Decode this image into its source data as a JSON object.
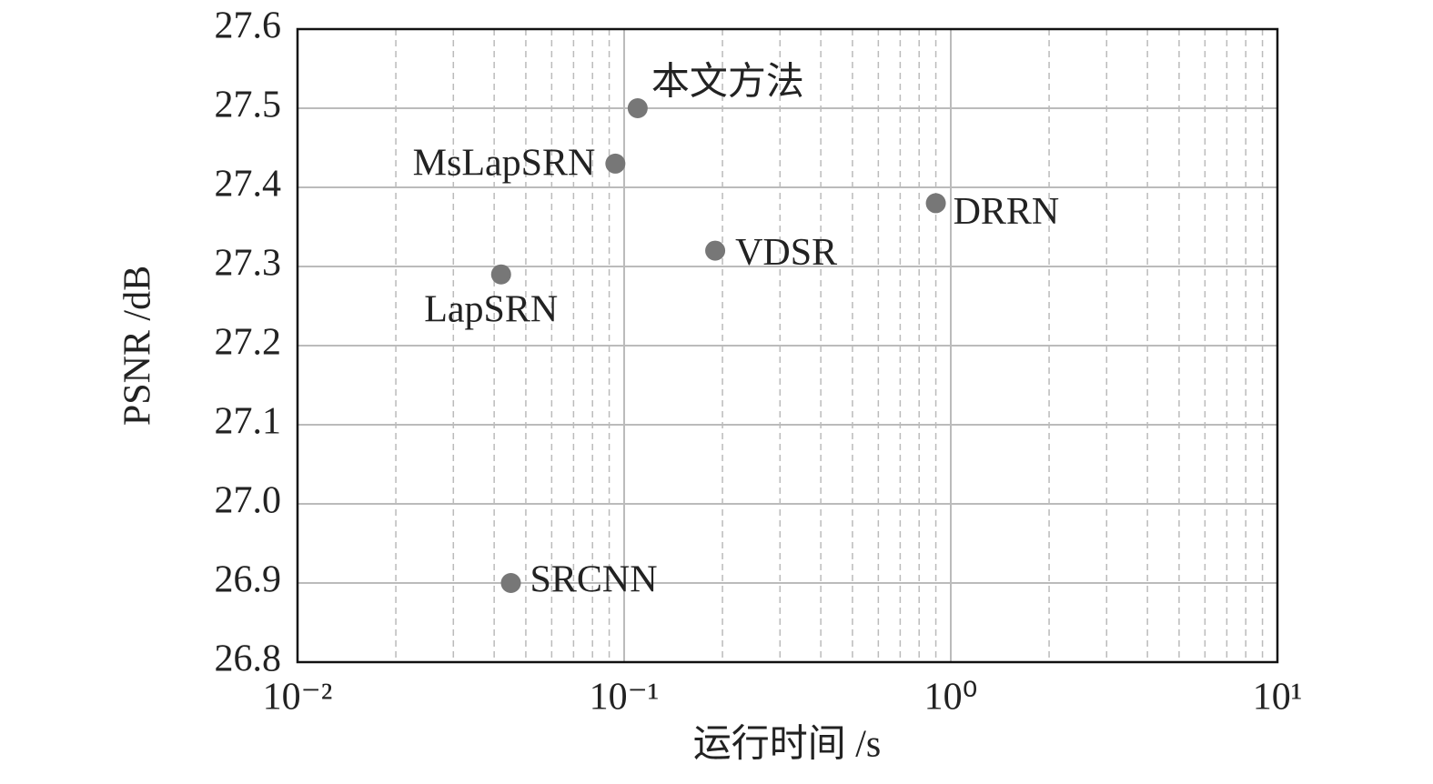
{
  "chart_data": {
    "type": "scatter",
    "x_label": "运行时间 /s",
    "y_label": "PSNR /dB",
    "x_scale": "log",
    "grid": true,
    "color": "#777777",
    "xlim": [
      0.01,
      10
    ],
    "xticks": [
      {
        "value": 0.01,
        "label": "10⁻²"
      },
      {
        "value": 0.1,
        "label": "10⁻¹"
      },
      {
        "value": 1,
        "label": "10⁰"
      },
      {
        "value": 10,
        "label": "10¹"
      }
    ],
    "xminorticks": [
      0.02,
      0.03,
      0.04,
      0.05,
      0.06,
      0.07,
      0.08,
      0.09,
      0.2,
      0.3,
      0.4,
      0.5,
      0.6,
      0.7,
      0.8,
      0.9,
      2,
      3,
      4,
      5,
      6,
      7,
      8,
      9
    ],
    "ylim": [
      26.8,
      27.6
    ],
    "yticks": [
      26.8,
      26.9,
      {
        "value": 27,
        "label": "27.0"
      },
      27.1,
      27.2,
      27.3,
      27.4,
      27.5,
      27.6
    ],
    "labels": [
      "本文方法",
      "MsLapSRN",
      "DRRN",
      "VDSR",
      "LapSRN",
      "SRCNN"
    ],
    "x": [
      0.11,
      0.094,
      0.9,
      0.19,
      0.042,
      0.045
    ],
    "y": [
      27.5,
      27.43,
      27.38,
      27.32,
      27.29,
      26.9
    ]
  }
}
